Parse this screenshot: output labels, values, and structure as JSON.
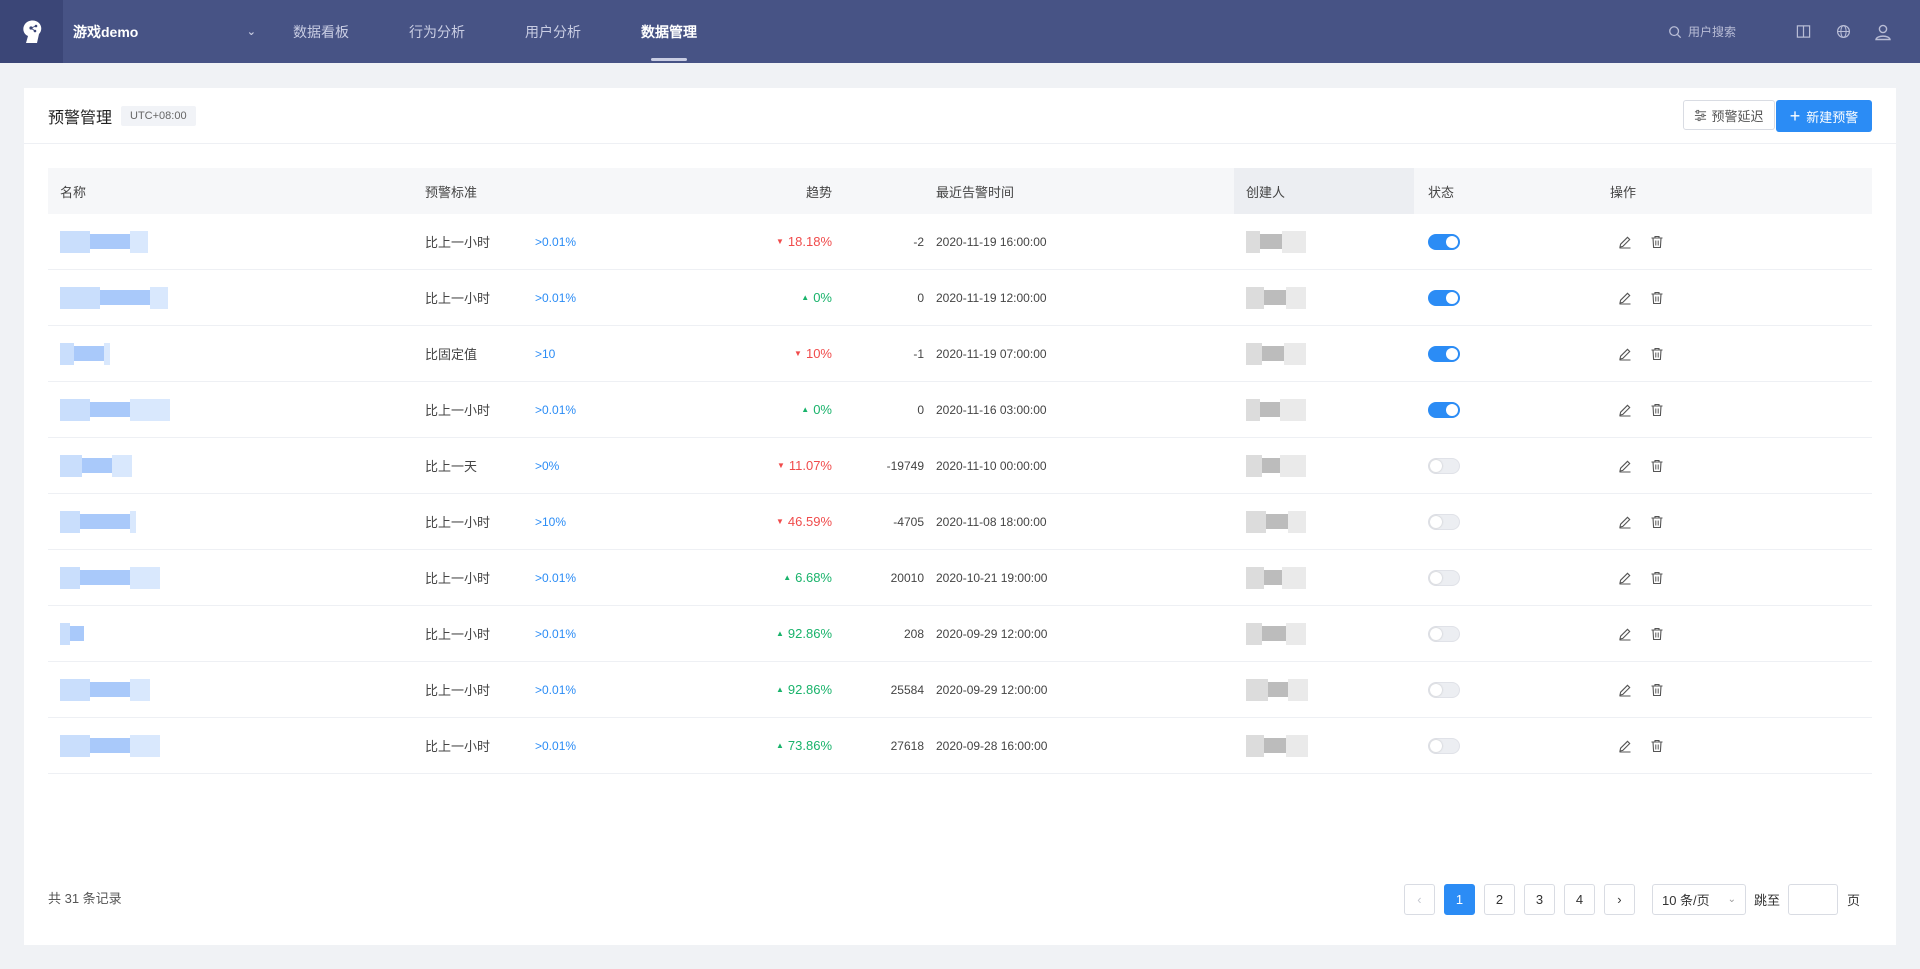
{
  "header": {
    "project_name": "游戏demo",
    "nav": [
      "数据看板",
      "行为分析",
      "用户分析",
      "数据管理"
    ],
    "active_nav": 3,
    "search_placeholder": "用户搜索"
  },
  "card": {
    "title": "预警管理",
    "timezone": "UTC+08:00",
    "delay_button": "预警延迟",
    "new_button": "新建预警"
  },
  "table": {
    "columns": [
      "名称",
      "预警标准",
      "趋势",
      "最近告警时间",
      "创建人",
      "状态",
      "操作"
    ],
    "rows": [
      {
        "standard": "比上一小时",
        "threshold": ">0.01%",
        "trend": "18.18%",
        "direction": "down",
        "diff": "-2",
        "time": "2020-11-19 16:00:00",
        "enabled": true
      },
      {
        "standard": "比上一小时",
        "threshold": ">0.01%",
        "trend": "0%",
        "direction": "up",
        "diff": "0",
        "time": "2020-11-19 12:00:00",
        "enabled": true
      },
      {
        "standard": "比固定值",
        "threshold": ">10",
        "trend": "10%",
        "direction": "down",
        "diff": "-1",
        "time": "2020-11-19 07:00:00",
        "enabled": true
      },
      {
        "standard": "比上一小时",
        "threshold": ">0.01%",
        "trend": "0%",
        "direction": "up",
        "diff": "0",
        "time": "2020-11-16 03:00:00",
        "enabled": true
      },
      {
        "standard": "比上一天",
        "threshold": ">0%",
        "trend": "11.07%",
        "direction": "down",
        "diff": "-19749",
        "time": "2020-11-10 00:00:00",
        "enabled": false
      },
      {
        "standard": "比上一小时",
        "threshold": ">10%",
        "trend": "46.59%",
        "direction": "down",
        "diff": "-4705",
        "time": "2020-11-08 18:00:00",
        "enabled": false
      },
      {
        "standard": "比上一小时",
        "threshold": ">0.01%",
        "trend": "6.68%",
        "direction": "up",
        "diff": "20010",
        "time": "2020-10-21 19:00:00",
        "enabled": false
      },
      {
        "standard": "比上一小时",
        "threshold": ">0.01%",
        "trend": "92.86%",
        "direction": "up",
        "diff": "208",
        "time": "2020-09-29 12:00:00",
        "enabled": false
      },
      {
        "standard": "比上一小时",
        "threshold": ">0.01%",
        "trend": "92.86%",
        "direction": "up",
        "diff": "25584",
        "time": "2020-09-29 12:00:00",
        "enabled": false
      },
      {
        "standard": "比上一小时",
        "threshold": ">0.01%",
        "trend": "73.86%",
        "direction": "up",
        "diff": "27618",
        "time": "2020-09-28 16:00:00",
        "enabled": false
      }
    ]
  },
  "footer": {
    "total": "共 31 条记录",
    "pages": [
      "1",
      "2",
      "3",
      "4"
    ],
    "current_page": "1",
    "page_size": "10 条/页",
    "jump_label": "跳至",
    "page_unit": "页"
  },
  "icons": {
    "logo": "brain-logo-icon",
    "search": "search-icon",
    "book": "book-icon",
    "globe": "globe-icon",
    "user": "user-icon",
    "edit": "edit-icon",
    "delete": "trash-icon"
  },
  "colors": {
    "header_bg": "#475385",
    "accent": "#2b8cf5",
    "up": "#19b36b",
    "down": "#f04b4b"
  }
}
